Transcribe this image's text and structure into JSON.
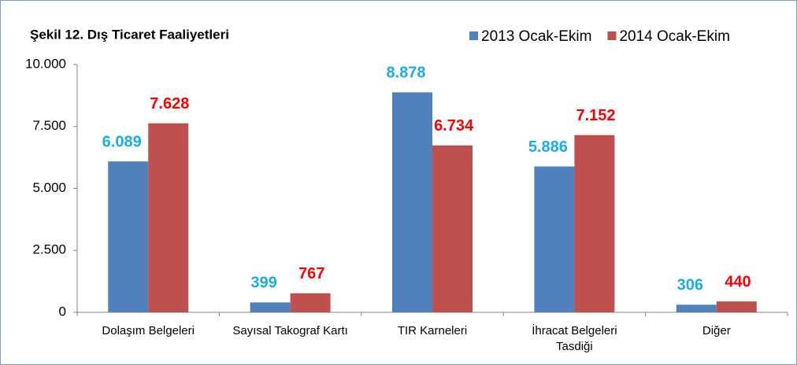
{
  "chart_data": {
    "type": "bar",
    "title": "Şekil 12. Dış Ticaret Faaliyetleri",
    "categories": [
      "Dolaşım Belgeleri",
      "Sayısal Takograf Kartı",
      "TIR Karneleri",
      "İhracat Belgeleri Tasdiği",
      "Diğer"
    ],
    "series": [
      {
        "name": "2013 Ocak-Ekim",
        "color": "#4f81bd",
        "label_color": "#1aaee8",
        "values": [
          6089,
          399,
          8878,
          5886,
          306
        ],
        "value_labels": [
          "6.089",
          "399",
          "8.878",
          "5.886",
          "306"
        ]
      },
      {
        "name": "2014 Ocak-Ekim",
        "color": "#c0504d",
        "label_color": "#ff0000",
        "values": [
          7628,
          767,
          6734,
          7152,
          440
        ],
        "value_labels": [
          "7.628",
          "767",
          "6.734",
          "7.152",
          "440"
        ]
      }
    ],
    "ylim": [
      0,
      10000
    ],
    "yticks": [
      0,
      {
        "value": 2500,
        "label": "2.500"
      },
      {
        "value": 5000,
        "label": "5.000"
      },
      {
        "value": 7500,
        "label": "7.500"
      },
      {
        "value": 10000,
        "label": "10.000"
      }
    ],
    "grid": false,
    "legend": "top-right"
  }
}
